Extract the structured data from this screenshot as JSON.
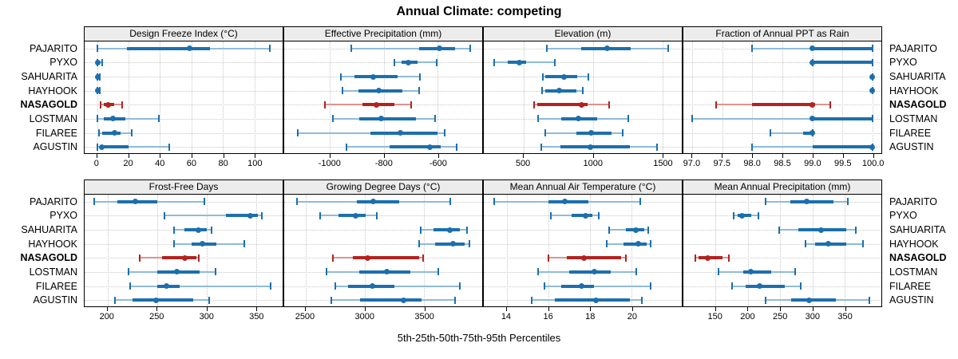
{
  "title": "Annual Climate: competing",
  "xlabel": "5th-25th-50th-75th-95th Percentiles",
  "colors": {
    "series": "#1c6fad",
    "series_light": "#90bbd9",
    "highlight": "#b2231f",
    "highlight_light": "#dc948e",
    "header_bg": "#ececec",
    "grid": "#c8c8c8",
    "border": "#000000"
  },
  "chart_data": {
    "type": "dotplot-percentiles",
    "percentile_levels": [
      5,
      25,
      50,
      75,
      95
    ],
    "sites": [
      "PAJARITO",
      "PYXO",
      "SAHUARITA",
      "HAYHOOK",
      "NASAGOLD",
      "LOSTMAN",
      "FILAREE",
      "AGUSTIN"
    ],
    "highlight_site": "NASAGOLD",
    "panels": [
      {
        "title": "Design Freeze Index (°C)",
        "xlim": [
          -8,
          118
        ],
        "tick_values": [
          0,
          20,
          40,
          60,
          80,
          100
        ],
        "tick_labels": [
          "0",
          "20",
          "40",
          "60",
          "80",
          "100"
        ],
        "values": [
          [
            0,
            19,
            59,
            72,
            110
          ],
          [
            0,
            0.3,
            0.5,
            1,
            3
          ],
          [
            0,
            0.2,
            0.5,
            0.8,
            1.5
          ],
          [
            0,
            0.2,
            0.5,
            0.8,
            1.5
          ],
          [
            2,
            4,
            7,
            11,
            16
          ],
          [
            0,
            4,
            10,
            18,
            39
          ],
          [
            1,
            3,
            11,
            15,
            22
          ],
          [
            0,
            2,
            3,
            20,
            46
          ]
        ]
      },
      {
        "title": "Effective Precipitation (mm)",
        "xlim": [
          -1170,
          -435
        ],
        "tick_values": [
          -1000,
          -800,
          -600
        ],
        "tick_labels": [
          "-1000",
          "-800",
          "-600"
        ],
        "values": [
          [
            -920,
            -670,
            -595,
            -535,
            -480
          ],
          [
            -760,
            -735,
            -710,
            -675,
            -605
          ],
          [
            -960,
            -910,
            -840,
            -750,
            -665
          ],
          [
            -955,
            -895,
            -820,
            -730,
            -670
          ],
          [
            -1020,
            -880,
            -828,
            -760,
            -700
          ],
          [
            -990,
            -890,
            -810,
            -680,
            -610
          ],
          [
            -1120,
            -850,
            -740,
            -600,
            -575
          ],
          [
            -940,
            -780,
            -630,
            -590,
            -530
          ]
        ]
      },
      {
        "title": "Elevation (m)",
        "xlim": [
          215,
          1640
        ],
        "tick_values": [
          500,
          1000,
          1500
        ],
        "tick_labels": [
          "500",
          "1000",
          "1500"
        ],
        "values": [
          [
            670,
            915,
            1105,
            1275,
            1545
          ],
          [
            290,
            385,
            470,
            520,
            725
          ],
          [
            640,
            660,
            793,
            890,
            965
          ],
          [
            632,
            660,
            760,
            880,
            930
          ],
          [
            575,
            600,
            920,
            960,
            1115
          ],
          [
            605,
            775,
            895,
            1030,
            1255
          ],
          [
            655,
            880,
            990,
            1135,
            1215
          ],
          [
            630,
            765,
            980,
            1265,
            1460
          ]
        ]
      },
      {
        "title": "Fraction of Annual PPT as Rain",
        "xlim": [
          96.85,
          100.15
        ],
        "tick_values": [
          97.0,
          97.5,
          98.0,
          98.5,
          99.0,
          99.5,
          100.0
        ],
        "tick_labels": [
          "97.0",
          "97.5",
          "98.0",
          "98.5",
          "99.0",
          "99.5",
          "100.0"
        ],
        "values": [
          [
            98,
            99,
            99,
            100,
            100
          ],
          [
            99,
            99,
            99,
            100,
            100
          ],
          [
            100,
            100,
            100,
            100,
            100
          ],
          [
            100,
            100,
            100,
            100,
            100
          ],
          [
            97.4,
            98,
            99,
            99.05,
            99.3
          ],
          [
            97,
            99,
            99,
            100,
            100
          ],
          [
            98.3,
            98.85,
            99,
            99,
            99
          ],
          [
            98,
            99,
            100,
            100,
            100
          ]
        ]
      },
      {
        "title": "Frost-Free Days",
        "xlim": [
          177,
          377
        ],
        "tick_values": [
          200,
          250,
          300,
          350
        ],
        "tick_labels": [
          "200",
          "250",
          "300",
          "350"
        ],
        "values": [
          [
            187,
            210,
            228,
            250,
            298
          ],
          [
            258,
            320,
            344,
            352,
            356
          ],
          [
            267,
            278,
            292,
            300,
            305
          ],
          [
            267,
            285,
            296,
            310,
            338
          ],
          [
            233,
            255,
            278,
            290,
            292
          ],
          [
            221,
            250,
            270,
            293,
            309
          ],
          [
            223,
            250,
            260,
            273,
            365
          ],
          [
            208,
            225,
            249,
            287,
            303
          ]
        ]
      },
      {
        "title": "Growing Degree Days (°C)",
        "xlim": [
          2320,
          3990
        ],
        "tick_values": [
          2500,
          3000,
          3500
        ],
        "tick_labels": [
          "2500",
          "3000",
          "3500"
        ],
        "values": [
          [
            2430,
            2930,
            3070,
            3290,
            3720
          ],
          [
            2620,
            2780,
            2920,
            3010,
            3100
          ],
          [
            3470,
            3580,
            3715,
            3800,
            3865
          ],
          [
            3455,
            3590,
            3745,
            3845,
            3885
          ],
          [
            2730,
            2900,
            3025,
            3460,
            3490
          ],
          [
            2680,
            2950,
            3185,
            3385,
            3620
          ],
          [
            2750,
            2860,
            3065,
            3250,
            3800
          ],
          [
            2720,
            2960,
            3325,
            3480,
            3760
          ]
        ]
      },
      {
        "title": "Mean Annual Air Temperature (°C)",
        "xlim": [
          12.9,
          22.4
        ],
        "tick_values": [
          14,
          16,
          18,
          20
        ],
        "tick_labels": [
          "14",
          "16",
          "18",
          "20"
        ],
        "values": [
          [
            13.4,
            16.0,
            16.8,
            17.9,
            20.4
          ],
          [
            16.1,
            17.1,
            17.8,
            18.1,
            18.4
          ],
          [
            18.9,
            19.7,
            20.2,
            20.6,
            20.8
          ],
          [
            18.8,
            19.6,
            20.3,
            20.7,
            20.9
          ],
          [
            16.0,
            16.9,
            17.7,
            19.5,
            19.7
          ],
          [
            15.5,
            17.0,
            18.2,
            19.0,
            20.2
          ],
          [
            15.8,
            16.6,
            17.6,
            18.2,
            20.9
          ],
          [
            15.2,
            16.3,
            18.3,
            19.9,
            20.5
          ]
        ]
      },
      {
        "title": "Mean Annual Precipitation (mm)",
        "xlim": [
          100,
          407
        ],
        "tick_values": [
          150,
          200,
          250,
          300,
          350
        ],
        "tick_labels": [
          "150",
          "200",
          "250",
          "300",
          "350"
        ],
        "values": [
          [
            227,
            266,
            291,
            333,
            355
          ],
          [
            178,
            184,
            191,
            205,
            216
          ],
          [
            248,
            278,
            314,
            352,
            368
          ],
          [
            290,
            304,
            325,
            353,
            378
          ],
          [
            119,
            124,
            138,
            161,
            171
          ],
          [
            155,
            193,
            205,
            236,
            273
          ],
          [
            175,
            196,
            218,
            257,
            282
          ],
          [
            227,
            267,
            295,
            337,
            389
          ]
        ]
      }
    ]
  }
}
